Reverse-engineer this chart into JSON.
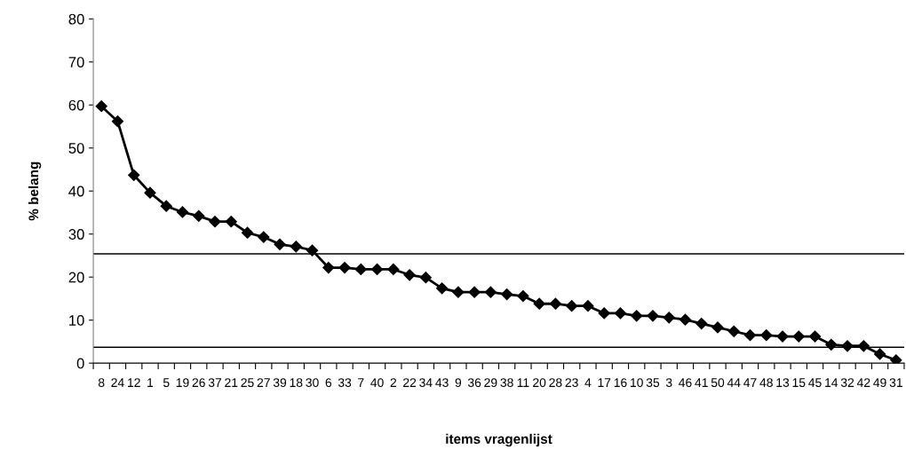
{
  "chart_data": {
    "type": "line",
    "xlabel": "items vragenlijst",
    "ylabel": "% belang",
    "categories": [
      "8",
      "24",
      "12",
      "1",
      "5",
      "19",
      "26",
      "37",
      "21",
      "25",
      "27",
      "39",
      "18",
      "30",
      "6",
      "33",
      "7",
      "40",
      "2",
      "22",
      "34",
      "43",
      "9",
      "36",
      "29",
      "38",
      "11",
      "20",
      "28",
      "23",
      "4",
      "17",
      "16",
      "10",
      "35",
      "3",
      "46",
      "41",
      "50",
      "44",
      "47",
      "48",
      "13",
      "15",
      "45",
      "14",
      "32",
      "42",
      "49",
      "31"
    ],
    "series": [
      {
        "color": "#000000",
        "values": [
          59.7,
          56.2,
          43.7,
          39.6,
          36.5,
          35.1,
          34.2,
          32.9,
          32.9,
          30.3,
          29.3,
          27.6,
          27.1,
          26.2,
          22.2,
          22.2,
          21.8,
          21.8,
          21.8,
          20.5,
          19.9,
          17.4,
          16.5,
          16.5,
          16.5,
          16.0,
          15.6,
          13.8,
          13.8,
          13.3,
          13.3,
          11.6,
          11.6,
          11.0,
          11.0,
          10.6,
          10.1,
          9.2,
          8.3,
          7.4,
          6.5,
          6.5,
          6.2,
          6.2,
          6.2,
          4.3,
          4.0,
          4.0,
          2.1,
          0.7
        ]
      }
    ],
    "ylim": [
      0,
      80
    ],
    "yticks": [
      0,
      10,
      20,
      30,
      40,
      50,
      60,
      70,
      80
    ],
    "grid": false,
    "legend": false,
    "marker": "diamond",
    "line_style": "solid",
    "ref_lines": [
      {
        "axis": "y",
        "value": 25.4,
        "color": "#000000"
      },
      {
        "axis": "y",
        "value": 3.7,
        "color": "#000000"
      }
    ]
  }
}
